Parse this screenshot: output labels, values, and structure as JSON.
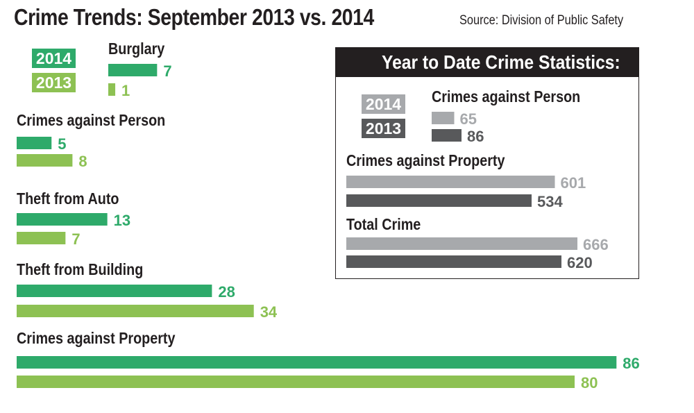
{
  "header": {
    "title": "Crime Trends: September 2013 vs. 2014",
    "source": "Source: Division of Public Safety"
  },
  "colors": {
    "y2014": "#2eaa6a",
    "y2013": "#8dc153",
    "ytd2014": "#a7a9ac",
    "ytd2013": "#58595b",
    "ink": "#231f20"
  },
  "legend": {
    "label_2014": "2014",
    "label_2013": "2013"
  },
  "chart_data": [
    {
      "type": "bar",
      "orientation": "horizontal",
      "title": "Crime Trends: September 2013 vs. 2014",
      "categories": [
        "Burglary",
        "Crimes against Person",
        "Theft from Auto",
        "Theft from Building",
        "Crimes against Property"
      ],
      "series": [
        {
          "name": "2014",
          "values": [
            7,
            5,
            13,
            28,
            86
          ]
        },
        {
          "name": "2013",
          "values": [
            1,
            8,
            7,
            34,
            80
          ]
        }
      ]
    },
    {
      "type": "bar",
      "orientation": "horizontal",
      "title": "Year to Date Crime Statistics:",
      "categories": [
        "Crimes against Person",
        "Crimes against Property",
        "Total Crime"
      ],
      "series": [
        {
          "name": "2014",
          "values": [
            65,
            601,
            666
          ]
        },
        {
          "name": "2013",
          "values": [
            86,
            534,
            620
          ]
        }
      ]
    }
  ]
}
